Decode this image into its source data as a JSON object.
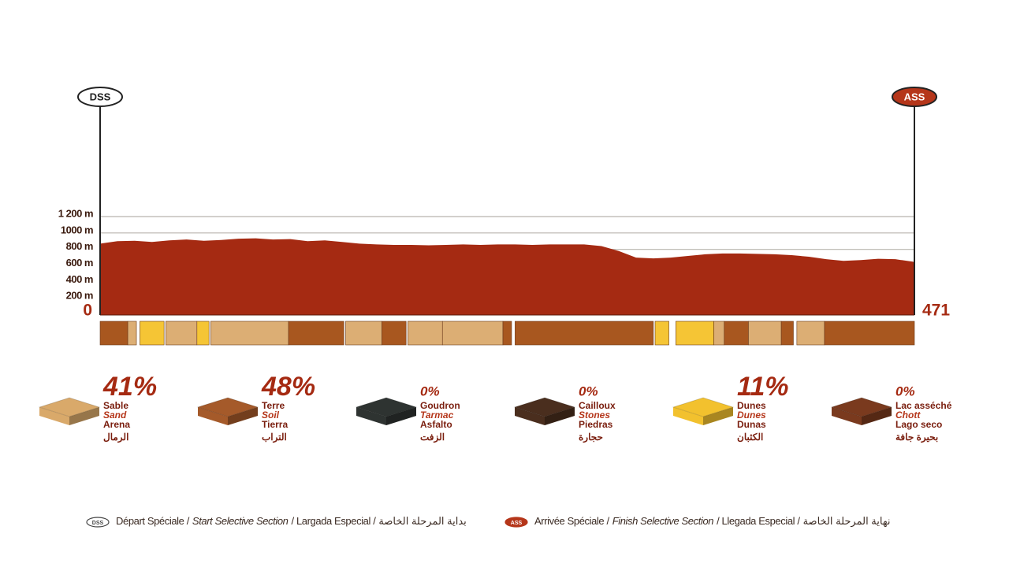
{
  "chart_data": [
    {
      "type": "area",
      "color": "#a52a12",
      "x": [
        0,
        10,
        20,
        30,
        40,
        50,
        60,
        70,
        80,
        90,
        100,
        110,
        120,
        130,
        140,
        150,
        160,
        170,
        180,
        190,
        200,
        210,
        220,
        230,
        240,
        250,
        260,
        270,
        280,
        290,
        300,
        310,
        320,
        330,
        340,
        350,
        360,
        370,
        380,
        390,
        400,
        410,
        420,
        430,
        440,
        450,
        460,
        470,
        471
      ],
      "values": [
        870,
        900,
        905,
        890,
        910,
        920,
        905,
        915,
        930,
        935,
        920,
        925,
        900,
        910,
        890,
        870,
        860,
        855,
        855,
        850,
        855,
        860,
        855,
        860,
        860,
        855,
        860,
        860,
        860,
        840,
        780,
        700,
        690,
        700,
        720,
        740,
        750,
        750,
        745,
        740,
        730,
        710,
        680,
        660,
        670,
        685,
        680,
        650,
        645
      ],
      "xlim": [
        0,
        471
      ],
      "xticks": [
        0,
        471
      ],
      "ylim": [
        0,
        1200
      ],
      "yticks": [
        {
          "value": 200,
          "label": "200 m"
        },
        {
          "value": 400,
          "label": "400 m"
        },
        {
          "value": 600,
          "label": "600 m"
        },
        {
          "value": 800,
          "label": "800 m"
        },
        {
          "value": 1000,
          "label": "1000 m"
        },
        {
          "value": 1200,
          "label": "1 200 m"
        }
      ],
      "grid": true,
      "markers": [
        {
          "label": "DSS",
          "x": 0,
          "color": "#ffffff"
        },
        {
          "label": "ASS",
          "x": 471,
          "color": "#b5361a"
        }
      ],
      "surface": [
        {
          "start": 0,
          "end": 16,
          "color": "#a8571f"
        },
        {
          "start": 16,
          "end": 21,
          "color": "#dcae74"
        },
        {
          "start": 23,
          "end": 37,
          "color": "#f5c535"
        },
        {
          "start": 38,
          "end": 56,
          "color": "#dcae74"
        },
        {
          "start": 56,
          "end": 63,
          "color": "#f5c535"
        },
        {
          "start": 64,
          "end": 109,
          "color": "#dcae74"
        },
        {
          "start": 109,
          "end": 141,
          "color": "#a8571f"
        },
        {
          "start": 142,
          "end": 163,
          "color": "#dcae74"
        },
        {
          "start": 163,
          "end": 177,
          "color": "#a8571f"
        },
        {
          "start": 178,
          "end": 198,
          "color": "#dcae74"
        },
        {
          "start": 198,
          "end": 233,
          "color": "#dcae74"
        },
        {
          "start": 233,
          "end": 238,
          "color": "#a8571f"
        },
        {
          "start": 240,
          "end": 320,
          "color": "#a8571f"
        },
        {
          "start": 321,
          "end": 329,
          "color": "#f5c535"
        },
        {
          "start": 333,
          "end": 355,
          "color": "#f5c535"
        },
        {
          "start": 355,
          "end": 361,
          "color": "#dcae74"
        },
        {
          "start": 361,
          "end": 375,
          "color": "#a8571f"
        },
        {
          "start": 375,
          "end": 394,
          "color": "#dcae74"
        },
        {
          "start": 394,
          "end": 401,
          "color": "#a8571f"
        },
        {
          "start": 403,
          "end": 419,
          "color": "#dcae74"
        },
        {
          "start": 419,
          "end": 471,
          "color": "#a8571f"
        }
      ]
    },
    {
      "type": "shares",
      "categories": [
        [
          "Sable",
          "Sand",
          "Arena",
          "الرمال"
        ],
        [
          "Terre",
          "Soil",
          "Tierra",
          "التراب"
        ],
        [
          "Goudron",
          "Tarmac",
          "Asfalto",
          "الزفت"
        ],
        [
          "Cailloux",
          "Stones",
          "Piedras",
          "حجارة"
        ],
        [
          "Dunes",
          "Dunes",
          "Dunas",
          "الكثبان"
        ],
        [
          "Lac asséché",
          "Chott",
          "Lago seco",
          "بحيرة جافة"
        ]
      ],
      "values": [
        41,
        48,
        0,
        0,
        11,
        0
      ],
      "value_labels": [
        "41%",
        "48%",
        "0%",
        "0%",
        "11%",
        "0%"
      ],
      "colors": [
        "#d9a96a",
        "#a55a2a",
        "#2e3331",
        "#4a2e1e",
        "#f2c12e",
        "#7a3a1e"
      ]
    }
  ],
  "footer": {
    "start": {
      "badge": "DSS",
      "parts": [
        "Départ Spéciale /",
        "Start Selective Section",
        "/ Largada Especial /",
        "بداية المرحلة الخاصة"
      ]
    },
    "finish": {
      "badge": "ASS",
      "parts": [
        "Arrivée Spéciale /",
        "Finish Selective Section",
        "/ Llegada Especial /",
        "نهاية المرحلة الخاصة"
      ]
    }
  }
}
